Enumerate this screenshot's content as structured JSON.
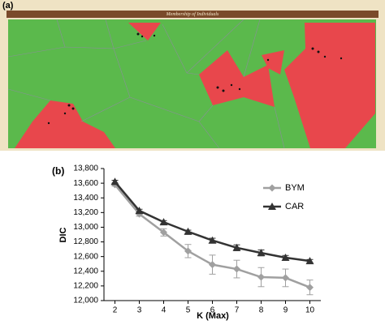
{
  "panel_a": {
    "label": "(a)",
    "title": "Membership of Individuals"
  },
  "chart_data": {
    "type": "line",
    "panel_label": "(b)",
    "x_label": "K (Max)",
    "y_label": "DIC",
    "x": [
      2,
      3,
      4,
      5,
      6,
      7,
      8,
      9,
      10
    ],
    "series": [
      {
        "name": "BYM",
        "color": "#a0a0a0",
        "marker": "diamond",
        "values": [
          13580,
          13180,
          12930,
          12675,
          12490,
          12430,
          12320,
          12310,
          12180
        ],
        "errors": [
          20,
          30,
          50,
          90,
          130,
          120,
          130,
          120,
          100
        ]
      },
      {
        "name": "CAR",
        "color": "#333333",
        "marker": "triangle",
        "values": [
          13620,
          13225,
          13070,
          12940,
          12820,
          12720,
          12650,
          12585,
          12540
        ],
        "errors": [
          20,
          20,
          20,
          20,
          30,
          40,
          40,
          30,
          20
        ]
      }
    ],
    "xlim": [
      1.55,
      10.45
    ],
    "xticks": [
      2,
      3,
      4,
      5,
      6,
      7,
      8,
      9,
      10
    ],
    "ylim": [
      12000,
      13800
    ],
    "yticks": [
      {
        "value": 12000,
        "label": "12,000"
      },
      {
        "value": 12200,
        "label": "12,200"
      },
      {
        "value": 12400,
        "label": "12,400"
      },
      {
        "value": 12600,
        "label": "12,600"
      },
      {
        "value": 12800,
        "label": "12,800"
      },
      {
        "value": 13000,
        "label": "13,000"
      },
      {
        "value": 13200,
        "label": "13,200"
      },
      {
        "value": 13400,
        "label": "13,400"
      },
      {
        "value": 13600,
        "label": "13,600"
      },
      {
        "value": 13800,
        "label": "13,800"
      }
    ],
    "legend": "upper-right",
    "error_bars": true
  }
}
